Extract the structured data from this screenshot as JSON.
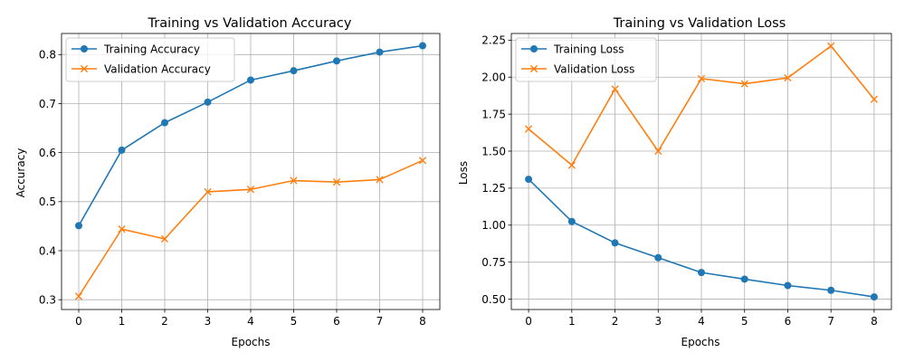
{
  "chart_data": [
    {
      "type": "line",
      "title": "Training vs Validation Accuracy",
      "xlabel": "Epochs",
      "ylabel": "Accuracy",
      "x": [
        0,
        1,
        2,
        3,
        4,
        5,
        6,
        7,
        8
      ],
      "xlim": [
        -0.4,
        8.4
      ],
      "ylim": [
        0.28,
        0.843
      ],
      "xticks": [
        0,
        1,
        2,
        3,
        4,
        5,
        6,
        7,
        8
      ],
      "yticks": [
        0.3,
        0.4,
        0.5,
        0.6,
        0.7,
        0.8
      ],
      "ytick_labels": [
        "0.3",
        "0.4",
        "0.5",
        "0.6",
        "0.7",
        "0.8"
      ],
      "grid": true,
      "legend_position": "upper-left",
      "series": [
        {
          "name": "Training Accuracy",
          "color": "#1f77b4",
          "marker": "circle",
          "values": [
            0.451,
            0.605,
            0.661,
            0.703,
            0.748,
            0.767,
            0.787,
            0.805,
            0.818
          ]
        },
        {
          "name": "Validation Accuracy",
          "color": "#ff7f0e",
          "marker": "x",
          "values": [
            0.307,
            0.444,
            0.424,
            0.52,
            0.525,
            0.543,
            0.54,
            0.545,
            0.584
          ]
        }
      ]
    },
    {
      "type": "line",
      "title": "Training vs Validation Loss",
      "xlabel": "Epochs",
      "ylabel": "Loss",
      "x": [
        0,
        1,
        2,
        3,
        4,
        5,
        6,
        7,
        8
      ],
      "xlim": [
        -0.4,
        8.4
      ],
      "ylim": [
        0.43,
        2.295
      ],
      "xticks": [
        0,
        1,
        2,
        3,
        4,
        5,
        6,
        7,
        8
      ],
      "yticks": [
        0.5,
        0.75,
        1.0,
        1.25,
        1.5,
        1.75,
        2.0,
        2.25
      ],
      "ytick_labels": [
        "0.50",
        "0.75",
        "1.00",
        "1.25",
        "1.50",
        "1.75",
        "2.00",
        "2.25"
      ],
      "grid": true,
      "legend_position": "upper-left",
      "series": [
        {
          "name": "Training Loss",
          "color": "#1f77b4",
          "marker": "circle",
          "values": [
            1.31,
            1.025,
            0.88,
            0.78,
            0.68,
            0.635,
            0.592,
            0.56,
            0.515
          ]
        },
        {
          "name": "Validation Loss",
          "color": "#ff7f0e",
          "marker": "x",
          "values": [
            1.65,
            1.405,
            1.92,
            1.5,
            1.99,
            1.955,
            1.995,
            2.21,
            1.85
          ]
        }
      ]
    }
  ]
}
